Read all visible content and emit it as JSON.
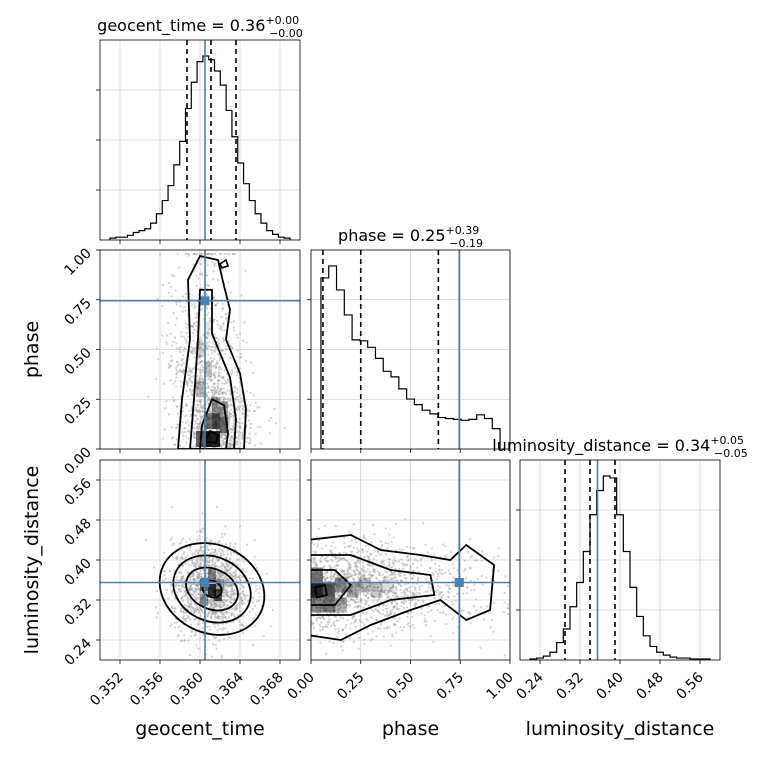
{
  "chart_data": {
    "type": "corner",
    "parameters": [
      "geocent_time",
      "phase",
      "luminosity_distance"
    ],
    "injection": {
      "geocent_time": 0.3605,
      "phase": 0.745,
      "luminosity_distance": 0.355
    },
    "titles": {
      "geocent_time": {
        "label": "geocent_time",
        "median": "0.36",
        "plus": "+0.00",
        "minus": "−0.00"
      },
      "phase": {
        "label": "phase",
        "median": "0.25",
        "plus": "+0.39",
        "minus": "−0.19"
      },
      "luminosity_distance": {
        "label": "luminosity_distance",
        "median": "0.34",
        "plus": "+0.05",
        "minus": "−0.05"
      }
    },
    "xlabels": {
      "geocent_time": "geocent_time",
      "phase": "phase",
      "luminosity_distance": "luminosity_distance"
    },
    "ylabels": {
      "phase": "phase",
      "luminosity_distance": "luminosity_distance"
    },
    "ranges": {
      "geocent_time": [
        0.35,
        0.37
      ],
      "phase": [
        0.0,
        1.0
      ],
      "luminosity_distance": [
        0.2,
        0.6
      ]
    },
    "ticks": {
      "geocent_time": [
        "0.352",
        "0.356",
        "0.360",
        "0.364",
        "0.368"
      ],
      "phase": [
        "0.00",
        "0.25",
        "0.50",
        "0.75",
        "1.00"
      ],
      "luminosity_distance": [
        "0.24",
        "0.32",
        "0.40",
        "0.48",
        "0.56"
      ]
    },
    "quantiles": {
      "geocent_time": [
        0.3587,
        0.3611,
        0.3636
      ],
      "phase": [
        0.06,
        0.25,
        0.64
      ],
      "luminosity_distance": [
        0.29,
        0.34,
        0.39
      ]
    },
    "histograms": {
      "geocent_time": [
        2,
        3,
        3,
        5,
        8,
        10,
        12,
        18,
        28,
        42,
        58,
        80,
        105,
        140,
        168,
        190,
        196,
        192,
        180,
        165,
        138,
        110,
        82,
        60,
        42,
        28,
        18,
        10,
        6,
        3,
        2
      ],
      "phase": [
        185,
        198,
        172,
        145,
        118,
        117,
        110,
        98,
        84,
        78,
        65,
        54,
        48,
        42,
        38,
        34,
        33,
        32,
        31,
        32,
        37,
        33,
        22
      ],
      "luminosity_distance": [
        1,
        2,
        4,
        8,
        18,
        32,
        55,
        80,
        112,
        150,
        175,
        190,
        188,
        150,
        112,
        75,
        45,
        25,
        14,
        8,
        5,
        3,
        2,
        2,
        1,
        1,
        1
      ]
    }
  }
}
